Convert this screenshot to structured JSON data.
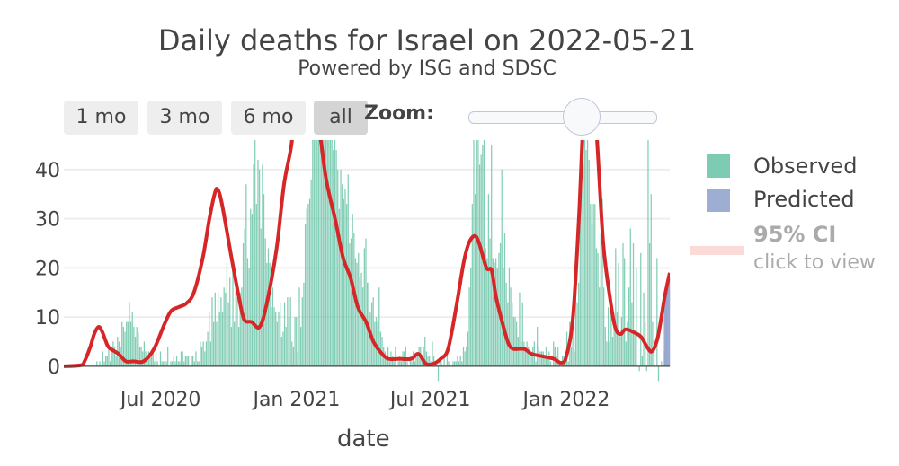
{
  "header": {
    "title": "Daily deaths for Israel on 2022-05-21",
    "subtitle": "Powered by ISG and SDSC"
  },
  "range_selector": {
    "buttons": [
      "1 mo",
      "3 mo",
      "6 mo",
      "all"
    ],
    "active": "all",
    "zoom_label": "Zoom:",
    "zoom_fraction": 0.6
  },
  "legend": {
    "observed": "Observed",
    "predicted": "Predicted",
    "ci_title": "95% CI",
    "ci_hint": "click to view"
  },
  "colors": {
    "observed": "#66c2a5",
    "predicted": "#8da0cb",
    "smoothed": "#d62728",
    "ci": "#fadbd8"
  },
  "chart_data": {
    "type": "bar",
    "title": "Daily deaths for Israel on 2022-05-21",
    "subtitle": "Powered by ISG and SDSC",
    "xlabel": "date",
    "ylabel": "",
    "x_range": [
      "2020-02-21",
      "2022-05-21"
    ],
    "ylim": [
      -3.5,
      46
    ],
    "x_ticks": [
      {
        "date": "2020-07-01",
        "label": "Jul 2020"
      },
      {
        "date": "2021-01-01",
        "label": "Jan 2021"
      },
      {
        "date": "2021-07-01",
        "label": "Jul 2021"
      },
      {
        "date": "2022-01-01",
        "label": "Jan 2022"
      }
    ],
    "y_ticks": [
      0,
      10,
      20,
      30,
      40
    ],
    "grid": true,
    "legend_position": "right",
    "smoothed_line": [
      [
        "2020-02-21",
        0
      ],
      [
        "2020-03-15",
        0.2
      ],
      [
        "2020-03-20",
        1
      ],
      [
        "2020-03-28",
        4
      ],
      [
        "2020-04-02",
        6.5
      ],
      [
        "2020-04-08",
        8
      ],
      [
        "2020-04-13",
        7
      ],
      [
        "2020-04-18",
        5
      ],
      [
        "2020-04-22",
        3.8
      ],
      [
        "2020-05-05",
        2.5
      ],
      [
        "2020-05-15",
        1
      ],
      [
        "2020-05-25",
        1
      ],
      [
        "2020-06-08",
        1
      ],
      [
        "2020-06-22",
        3.5
      ],
      [
        "2020-07-06",
        8.5
      ],
      [
        "2020-07-15",
        11.2
      ],
      [
        "2020-07-25",
        12
      ],
      [
        "2020-08-05",
        12.8
      ],
      [
        "2020-08-15",
        15
      ],
      [
        "2020-08-27",
        22
      ],
      [
        "2020-09-05",
        30
      ],
      [
        "2020-09-12",
        35
      ],
      [
        "2020-09-16",
        36
      ],
      [
        "2020-09-22",
        33
      ],
      [
        "2020-10-05",
        22
      ],
      [
        "2020-10-15",
        14
      ],
      [
        "2020-10-22",
        9.5
      ],
      [
        "2020-11-01",
        9
      ],
      [
        "2020-11-12",
        8
      ],
      [
        "2020-11-22",
        13
      ],
      [
        "2020-12-05",
        24
      ],
      [
        "2020-12-15",
        37
      ],
      [
        "2020-12-25",
        45
      ],
      [
        "2021-01-01",
        55
      ],
      [
        "2021-01-20",
        60
      ],
      [
        "2021-02-01",
        48
      ],
      [
        "2021-02-10",
        38
      ],
      [
        "2021-02-22",
        30
      ],
      [
        "2021-03-05",
        22
      ],
      [
        "2021-03-15",
        18
      ],
      [
        "2021-03-25",
        12
      ],
      [
        "2021-04-05",
        9
      ],
      [
        "2021-04-15",
        5
      ],
      [
        "2021-04-25",
        2.8
      ],
      [
        "2021-05-05",
        1.5
      ],
      [
        "2021-05-20",
        1.5
      ],
      [
        "2021-06-05",
        1.5
      ],
      [
        "2021-06-15",
        2.5
      ],
      [
        "2021-06-25",
        0.5
      ],
      [
        "2021-07-05",
        0.5
      ],
      [
        "2021-07-15",
        1.5
      ],
      [
        "2021-07-25",
        3.5
      ],
      [
        "2021-08-05",
        12
      ],
      [
        "2021-08-15",
        21
      ],
      [
        "2021-08-22",
        25
      ],
      [
        "2021-08-30",
        26.5
      ],
      [
        "2021-09-05",
        25
      ],
      [
        "2021-09-15",
        20
      ],
      [
        "2021-09-22",
        19.5
      ],
      [
        "2021-09-28",
        14
      ],
      [
        "2021-10-08",
        8
      ],
      [
        "2021-10-15",
        4.5
      ],
      [
        "2021-10-22",
        3.5
      ],
      [
        "2021-11-05",
        3.5
      ],
      [
        "2021-11-15",
        2.5
      ],
      [
        "2021-11-30",
        2
      ],
      [
        "2021-12-15",
        1.5
      ],
      [
        "2021-12-25",
        0.7
      ],
      [
        "2022-01-01",
        2
      ],
      [
        "2022-01-10",
        10
      ],
      [
        "2022-01-18",
        30
      ],
      [
        "2022-01-26",
        55
      ],
      [
        "2022-02-05",
        60
      ],
      [
        "2022-02-12",
        45
      ],
      [
        "2022-02-20",
        25
      ],
      [
        "2022-03-01",
        14
      ],
      [
        "2022-03-08",
        8
      ],
      [
        "2022-03-15",
        6.5
      ],
      [
        "2022-03-22",
        7.5
      ],
      [
        "2022-04-01",
        7
      ],
      [
        "2022-04-12",
        6
      ],
      [
        "2022-04-20",
        4
      ],
      [
        "2022-04-27",
        3
      ],
      [
        "2022-05-05",
        6
      ],
      [
        "2022-05-14",
        14
      ],
      [
        "2022-05-21",
        19
      ]
    ],
    "predicted": [
      [
        "2022-05-14",
        13
      ],
      [
        "2022-05-15",
        14
      ],
      [
        "2022-05-16",
        14
      ],
      [
        "2022-05-17",
        15
      ],
      [
        "2022-05-18",
        15
      ],
      [
        "2022-05-19",
        16
      ],
      [
        "2022-05-20",
        17
      ],
      [
        "2022-05-21",
        18
      ]
    ],
    "observed_daily": [
      0,
      0,
      0,
      0,
      0,
      0,
      0,
      0,
      0,
      0,
      0,
      0,
      0,
      0,
      0,
      0,
      0,
      0,
      0,
      0,
      0,
      0,
      1,
      0,
      1,
      0,
      3,
      1,
      2,
      2,
      4,
      1,
      3,
      5,
      4,
      2,
      6,
      5,
      4,
      9,
      8,
      7,
      9,
      9,
      13,
      9,
      11,
      8,
      6,
      8,
      7,
      4,
      4,
      3,
      5,
      3,
      2,
      3,
      2,
      3,
      3,
      1,
      3,
      1,
      0,
      3,
      1,
      1,
      1,
      1,
      4,
      0,
      1,
      1,
      2,
      1,
      2,
      1,
      1,
      3,
      3,
      1,
      2,
      2,
      2,
      0,
      2,
      2,
      1,
      3,
      1,
      1,
      5,
      4,
      5,
      3,
      5,
      7,
      11,
      5,
      14,
      9,
      15,
      9,
      15,
      11,
      14,
      11,
      16,
      15,
      21,
      13,
      18,
      8,
      22,
      9,
      16,
      14,
      8,
      15,
      16,
      25,
      28,
      37,
      22,
      20,
      32,
      31,
      41,
      46,
      33,
      42,
      40,
      28,
      41,
      35,
      26,
      21,
      24,
      21,
      12,
      16,
      12,
      11,
      9,
      11,
      13,
      6,
      7,
      13,
      8,
      14,
      10,
      14,
      5,
      4,
      10,
      10,
      3,
      16,
      8,
      14,
      17,
      29,
      32,
      33,
      34,
      38,
      48,
      46,
      48,
      60,
      57,
      50,
      66,
      69,
      62,
      58,
      64,
      47,
      55,
      61,
      44,
      46,
      44,
      40,
      32,
      40,
      37,
      34,
      36,
      33,
      39,
      25,
      26,
      31,
      27,
      22,
      21,
      23,
      18,
      19,
      16,
      24,
      26,
      17,
      17,
      11,
      13,
      14,
      9,
      10,
      9,
      16,
      7,
      6,
      4,
      3,
      2,
      4,
      1,
      3,
      2,
      1,
      4,
      0,
      1,
      2,
      1,
      3,
      3,
      4,
      1,
      0,
      2,
      1,
      3,
      1,
      2,
      2,
      4,
      4,
      2,
      4,
      6,
      3,
      2,
      2,
      1,
      5,
      2,
      1,
      1,
      -3,
      1,
      1,
      0,
      2,
      0,
      2,
      1,
      0,
      0,
      1,
      1,
      1,
      2,
      1,
      2,
      1,
      4,
      3,
      4,
      7,
      16,
      20,
      33,
      46,
      35,
      48,
      46,
      41,
      43,
      45,
      46,
      24,
      22,
      35,
      26,
      45,
      22,
      21,
      22,
      20,
      23,
      25,
      40,
      20,
      27,
      17,
      13,
      20,
      16,
      13,
      10,
      10,
      9,
      6,
      15,
      5,
      13,
      5,
      4,
      5,
      4,
      2,
      2,
      4,
      5,
      1,
      8,
      4,
      3,
      3,
      3,
      2,
      4,
      2,
      3,
      1,
      0,
      5,
      4,
      2,
      4,
      1,
      0,
      2,
      2,
      1,
      7,
      1,
      9,
      4,
      8,
      3,
      16,
      13,
      17,
      36,
      46,
      41,
      46,
      44,
      46,
      42,
      33,
      29,
      33,
      33,
      24,
      23,
      16,
      27,
      34,
      16,
      8,
      5,
      12,
      5,
      13,
      6,
      9,
      24,
      11,
      21,
      6,
      10,
      25,
      22,
      5,
      9,
      16,
      28,
      13,
      25,
      7,
      20,
      0,
      -1,
      23,
      2,
      15,
      9,
      -1,
      46,
      25,
      35,
      9,
      3,
      0,
      22,
      -3,
      0,
      1,
      0,
      3
    ]
  }
}
